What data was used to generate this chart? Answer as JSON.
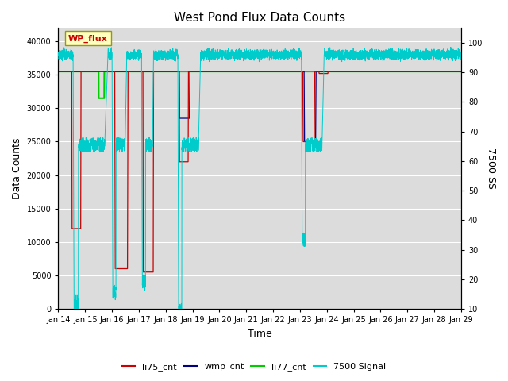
{
  "title": "West Pond Flux Data Counts",
  "xlabel": "Time",
  "ylabel_left": "Data Counts",
  "ylabel_right": "7500 SS",
  "yticks_left": [
    0,
    5000,
    10000,
    15000,
    20000,
    25000,
    30000,
    35000,
    40000
  ],
  "ylim_left": [
    0,
    42000
  ],
  "ylim_right": [
    10,
    105
  ],
  "yticks_right": [
    10,
    20,
    30,
    40,
    50,
    60,
    70,
    80,
    90,
    100
  ],
  "bg_color": "#dcdcdc",
  "fig_color": "#ffffff",
  "annotation_text": "WP_flux",
  "annotation_color": "#cc0000",
  "annotation_bg": "#ffffc0",
  "annotation_edge": "#999900",
  "li75_color": "#cc0000",
  "wmp_color": "#000080",
  "li77_color": "#00cc00",
  "signal7500_color": "#00cccc",
  "num_points": 3600,
  "xlim": [
    0,
    15
  ],
  "tick_day_start": 14,
  "num_ticks": 16
}
